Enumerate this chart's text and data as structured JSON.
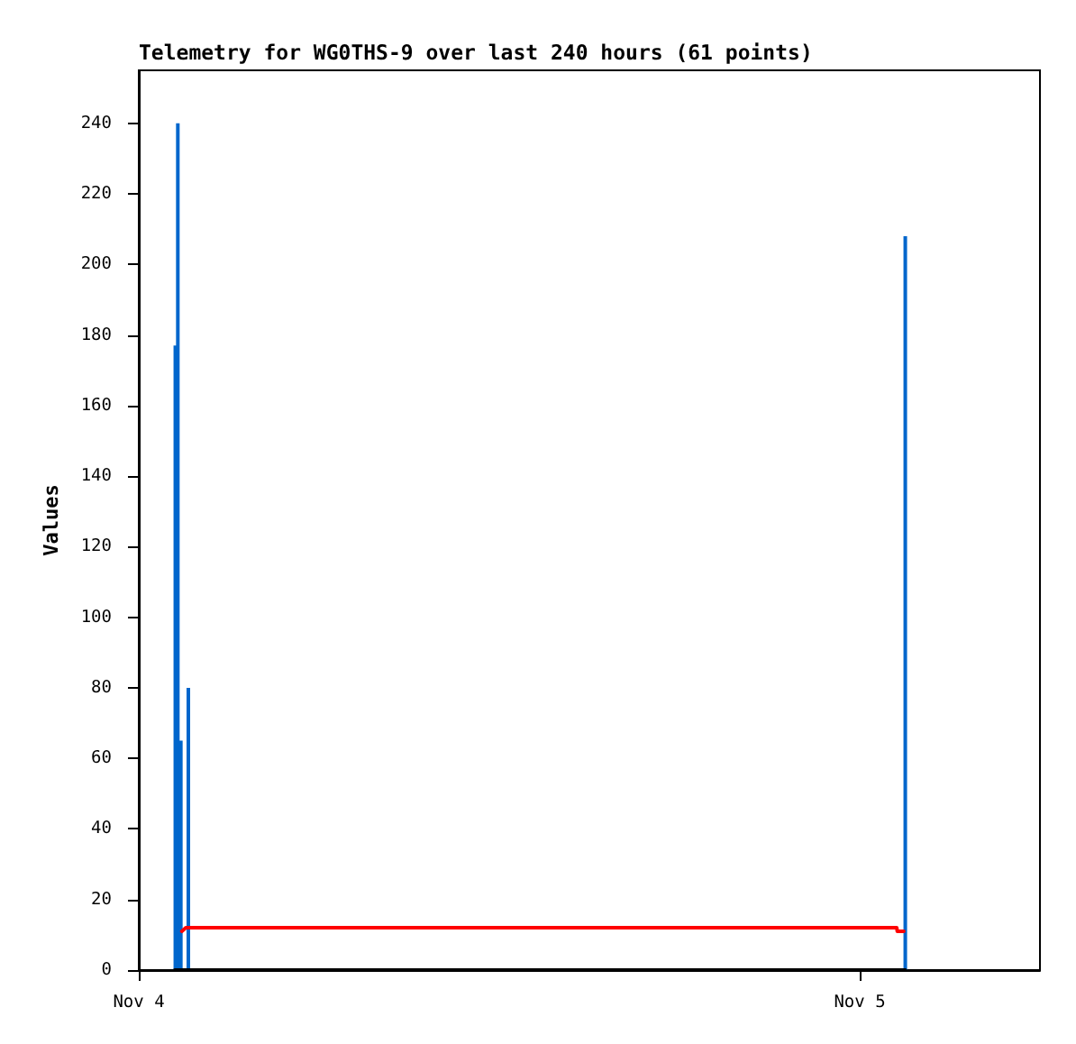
{
  "chart_data": {
    "type": "line",
    "title": "Telemetry for WG0THS-9 over last 240 hours (61 points)",
    "ylabel": "Values",
    "xlim": [
      "--11-04T00:00",
      "--11-05T06:00"
    ],
    "xticks": [
      {
        "value": "--11-04T00:00",
        "label": "Nov 4"
      },
      {
        "value": "--11-05T00:00",
        "label": "Nov 5"
      }
    ],
    "ylim": [
      0,
      255
    ],
    "yticks": [
      0,
      20,
      40,
      60,
      80,
      100,
      120,
      140,
      160,
      180,
      200,
      220,
      240
    ],
    "series": [
      {
        "type": "bar",
        "color": "#0066cc",
        "x": [
          "--11-04T01:13",
          "--11-04T01:18",
          "--11-04T01:24",
          "--11-04T01:39",
          "--11-05T01:31"
        ],
        "values": [
          177,
          240,
          65,
          80,
          208
        ]
      },
      {
        "color": "#ff0000",
        "x": [
          "--11-04T01:26",
          "--11-04T01:34",
          "--11-05T01:14",
          "--11-05T01:15",
          "--11-05T01:28"
        ],
        "values": [
          11,
          12,
          12,
          11,
          11
        ]
      },
      {
        "color": "#000000",
        "x": [
          "--11-04T01:12",
          "--11-05T01:31"
        ],
        "values": [
          0,
          0
        ]
      }
    ]
  }
}
